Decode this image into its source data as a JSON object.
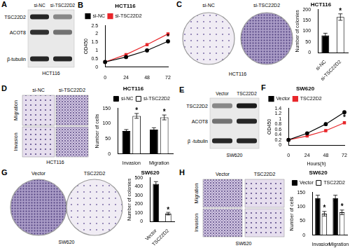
{
  "chart_data": [
    {
      "panel": "B",
      "type": "line",
      "title": "HCT116",
      "y_label": "OD450",
      "x": [
        0,
        24,
        48,
        72
      ],
      "xlim": [
        0,
        72
      ],
      "xticks": [
        0,
        24,
        48,
        72
      ],
      "ylim": [
        0,
        2.5
      ],
      "yticks": [
        0,
        0.5,
        1,
        1.5,
        2,
        2.5
      ],
      "series": [
        {
          "name": "si-NC",
          "color": "#000000",
          "marker": "circle",
          "values": [
            0.3,
            0.6,
            1.0,
            1.55
          ]
        },
        {
          "name": "si-TSC22D2",
          "color": "#e8262a",
          "marker": "square",
          "values": [
            0.3,
            0.75,
            1.35,
            2.0
          ]
        }
      ],
      "legend": "top-left",
      "grid": false,
      "annotations": [
        {
          "text": "*",
          "x": 72,
          "y": 1.78
        }
      ]
    },
    {
      "type": "bar",
      "title": "HCT116",
      "y_label": "Number of colonies",
      "categories": [
        "si-NC",
        "si-TSC22D2"
      ],
      "values": [
        80,
        165
      ],
      "errors": [
        10,
        15
      ],
      "colors": [
        "#000000",
        "#ffffff"
      ],
      "ylim": [
        0,
        200
      ],
      "yticks": [
        0,
        50,
        100,
        150,
        200
      ],
      "grid": false,
      "annotations": [
        {
          "text": "*",
          "category": "si-TSC22D2",
          "y": 190
        }
      ]
    },
    {
      "type": "bar",
      "title": "HCT116",
      "y_label": "Number of cells",
      "categories": [
        "Invasion",
        "Migration"
      ],
      "series": [
        {
          "name": "si-NC",
          "color": "#000000",
          "values": [
            75,
            80
          ],
          "errors": [
            5,
            6
          ]
        },
        {
          "name": "si-TSC22D2",
          "color": "#ffffff",
          "values": [
            125,
            120
          ],
          "errors": [
            8,
            8
          ]
        }
      ],
      "ylim": [
        0,
        150
      ],
      "yticks": [
        0,
        50,
        100,
        150
      ],
      "legend": "top-right",
      "grid": false,
      "annotations": [
        {
          "text": "*",
          "category": "Invasion",
          "series": "si-TSC22D2",
          "y": 142
        },
        {
          "text": "*",
          "category": "Migration",
          "series": "si-TSC22D2",
          "y": 137
        }
      ]
    },
    {
      "panel": "F",
      "type": "line",
      "title": "SW620",
      "y_label": "OD450",
      "x_label": "Hours(h)",
      "x": [
        0,
        24,
        48,
        72
      ],
      "xlim": [
        0,
        72
      ],
      "xticks": [
        0,
        24,
        48,
        72
      ],
      "ylim": [
        0,
        1.4
      ],
      "yticks": [
        0,
        0.2,
        0.4,
        0.6,
        0.8,
        1,
        1.2,
        1.4
      ],
      "series": [
        {
          "name": "Vector",
          "color": "#000000",
          "marker": "circle",
          "values": [
            0.2,
            0.45,
            0.8,
            1.25
          ]
        },
        {
          "name": "TSC22D2",
          "color": "#e8262a",
          "marker": "square",
          "values": [
            0.2,
            0.35,
            0.55,
            0.85
          ]
        }
      ],
      "legend": "top-left",
      "grid": false,
      "annotations": [
        {
          "text": "*",
          "x": 72,
          "y": 1.05
        }
      ]
    },
    {
      "type": "bar",
      "title": "SW620",
      "y_label": "Number of colonies",
      "categories": [
        "Vector",
        "TSC22D2"
      ],
      "values": [
        430,
        90
      ],
      "errors": [
        25,
        15
      ],
      "colors": [
        "#000000",
        "#ffffff"
      ],
      "ylim": [
        0,
        500
      ],
      "yticks": [
        0,
        100,
        200,
        300,
        400,
        500
      ],
      "grid": false,
      "annotations": [
        {
          "text": "*",
          "category": "TSC22D2",
          "y": 130
        }
      ]
    },
    {
      "type": "bar",
      "title": "SW620",
      "y_label": "Number of cells",
      "categories": [
        "Invasion",
        "Migration"
      ],
      "series": [
        {
          "name": "Vector",
          "color": "#000000",
          "values": [
            130,
            130
          ],
          "errors": [
            10,
            10
          ]
        },
        {
          "name": "TSC22D2",
          "color": "#ffffff",
          "values": [
            75,
            80
          ],
          "errors": [
            8,
            8
          ]
        }
      ],
      "ylim": [
        0,
        150
      ],
      "yticks": [
        0,
        50,
        100,
        150
      ],
      "legend": "top-right",
      "grid": false,
      "annotations": [
        {
          "text": "*",
          "category": "Invasion",
          "series": "TSC22D2",
          "y": 95
        },
        {
          "text": "*",
          "category": "Migration",
          "series": "TSC22D2",
          "y": 100
        }
      ]
    }
  ],
  "blots": [
    {
      "panel": "A",
      "columns": [
        "si-NC",
        "si-TSC22D2"
      ],
      "rows": [
        "TSC22D2",
        "ACOT8",
        "β-tubulin"
      ],
      "cell_line": "HCT116"
    },
    {
      "panel": "E",
      "columns": [
        "Vector",
        "TSC22D2"
      ],
      "rows": [
        "TSC22D2",
        "ACOT8",
        "β -tubulin"
      ],
      "cell_line": "SW620"
    }
  ],
  "colony_images": [
    {
      "panel": "C",
      "columns": [
        "si-NC",
        "si-TSC22D2"
      ],
      "cell_line": "HCT116"
    },
    {
      "panel": "G",
      "columns": [
        "Vector",
        "TSC22D2"
      ],
      "cell_line": "SW620"
    }
  ],
  "transwell_images": [
    {
      "panel": "D",
      "columns": [
        "si-NC",
        "si-TSC22D2"
      ],
      "rows": [
        "Migration",
        "Invasion"
      ],
      "cell_line": "HCT116"
    },
    {
      "panel": "H",
      "columns": [
        "Vector",
        "TSC22D2"
      ],
      "rows": [
        "Migration",
        "Invasion"
      ],
      "cell_line": "SW620"
    }
  ]
}
